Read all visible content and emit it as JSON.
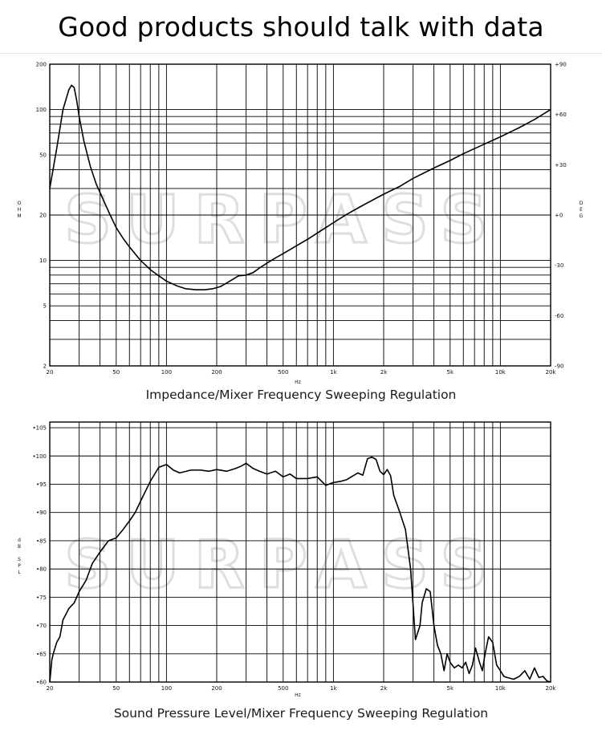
{
  "page": {
    "title": "Good products should talk with data",
    "watermark": "SURPASS"
  },
  "chart_data": [
    {
      "type": "line",
      "caption": "Impedance/Mixer Frequency Sweeping Regulation",
      "xlabel": "Hz",
      "ylabel": "OHM",
      "y2label": "DEG",
      "xscale": "log",
      "yscale": "log",
      "xlim": [
        20,
        20000
      ],
      "ylim": [
        2,
        200
      ],
      "y2lim": [
        -90,
        90
      ],
      "grid": true,
      "x_ticks": [
        {
          "v": 20,
          "l": "20"
        },
        {
          "v": 50,
          "l": "50"
        },
        {
          "v": 100,
          "l": "100"
        },
        {
          "v": 200,
          "l": "200"
        },
        {
          "v": 500,
          "l": "500"
        },
        {
          "v": 1000,
          "l": "1k"
        },
        {
          "v": 2000,
          "l": "2k"
        },
        {
          "v": 5000,
          "l": "5k"
        },
        {
          "v": 10000,
          "l": "10k"
        },
        {
          "v": 20000,
          "l": "20k"
        }
      ],
      "y_ticks": [
        {
          "v": 2,
          "l": "2"
        },
        {
          "v": 5,
          "l": "5"
        },
        {
          "v": 10,
          "l": "10"
        },
        {
          "v": 20,
          "l": "20"
        },
        {
          "v": 50,
          "l": "50"
        },
        {
          "v": 100,
          "l": "100"
        },
        {
          "v": 200,
          "l": "200"
        }
      ],
      "y2_ticks": [
        {
          "v": 90,
          "l": "+90"
        },
        {
          "v": 60,
          "l": "+60"
        },
        {
          "v": 30,
          "l": "+30"
        },
        {
          "v": 0,
          "l": "+0"
        },
        {
          "v": -30,
          "l": "-30"
        },
        {
          "v": -60,
          "l": "-60"
        },
        {
          "v": -90,
          "l": "-90"
        }
      ],
      "series": [
        {
          "x": [
            20,
            22,
            24,
            26,
            27,
            28,
            29,
            30,
            32,
            35,
            38,
            42,
            46,
            50,
            55,
            60,
            70,
            80,
            90,
            100,
            115,
            130,
            150,
            170,
            190,
            210,
            230,
            250,
            270,
            300,
            330,
            360,
            400,
            450,
            500,
            550,
            600,
            700,
            800,
            900,
            1000,
            1200,
            1500,
            2000,
            2500,
            3000,
            4000,
            5000,
            6000,
            8000,
            10000,
            13000,
            16000,
            20000
          ],
          "y": [
            30,
            55,
            100,
            135,
            145,
            140,
            115,
            90,
            62,
            42,
            32,
            25,
            20,
            16.5,
            14,
            12.3,
            10,
            8.7,
            7.9,
            7.3,
            6.8,
            6.5,
            6.4,
            6.4,
            6.5,
            6.7,
            7.1,
            7.5,
            7.9,
            8.0,
            8.3,
            8.9,
            9.6,
            10.4,
            11.1,
            11.8,
            12.5,
            13.8,
            15.2,
            16.5,
            17.8,
            20.2,
            23.2,
            27.5,
            31,
            35,
            41,
            46,
            51,
            59,
            66,
            76,
            86,
            100
          ]
        }
      ]
    },
    {
      "type": "line",
      "caption": "Sound Pressure Level/Mixer Frequency Sweeping Regulation",
      "xlabel": "Hz",
      "ylabel": "dB SPL",
      "xscale": "log",
      "xlim": [
        20,
        20000
      ],
      "ylim": [
        60,
        106
      ],
      "grid": true,
      "x_ticks": [
        {
          "v": 20,
          "l": "20"
        },
        {
          "v": 50,
          "l": "50"
        },
        {
          "v": 100,
          "l": "100"
        },
        {
          "v": 200,
          "l": "200"
        },
        {
          "v": 500,
          "l": "500"
        },
        {
          "v": 1000,
          "l": "1k"
        },
        {
          "v": 2000,
          "l": "2k"
        },
        {
          "v": 5000,
          "l": "5k"
        },
        {
          "v": 10000,
          "l": "10k"
        },
        {
          "v": 20000,
          "l": "20k"
        }
      ],
      "y_ticks": [
        {
          "v": 60,
          "l": "60"
        },
        {
          "v": 65,
          "l": "65"
        },
        {
          "v": 70,
          "l": "70"
        },
        {
          "v": 75,
          "l": "75"
        },
        {
          "v": 80,
          "l": "80"
        },
        {
          "v": 85,
          "l": "85"
        },
        {
          "v": 90,
          "l": "90"
        },
        {
          "v": 95,
          "l": "95"
        },
        {
          "v": 100,
          "l": "100"
        },
        {
          "v": 105,
          "l": "105"
        }
      ],
      "series": [
        {
          "x": [
            20,
            20.6,
            21,
            22,
            23,
            24,
            25,
            26,
            28,
            30,
            33,
            36,
            40,
            45,
            50,
            55,
            60,
            65,
            70,
            80,
            90,
            100,
            110,
            120,
            140,
            160,
            180,
            200,
            230,
            260,
            280,
            300,
            330,
            360,
            400,
            450,
            500,
            550,
            600,
            700,
            800,
            900,
            1000,
            1100,
            1200,
            1400,
            1500,
            1600,
            1700,
            1800,
            1900,
            2000,
            2100,
            2200,
            2300,
            2500,
            2700,
            2900,
            3100,
            3300,
            3400,
            3600,
            3800,
            4000,
            4200,
            4400,
            4600,
            4800,
            5000,
            5300,
            5600,
            5900,
            6200,
            6500,
            6800,
            7100,
            7500,
            7800,
            8100,
            8500,
            9000,
            9500,
            10000,
            10500,
            11000,
            12000,
            13000,
            14000,
            15000,
            16000,
            17000,
            18000,
            19000,
            20000
          ],
          "y": [
            60,
            64,
            65,
            67,
            68,
            71,
            72,
            73,
            74,
            76,
            78,
            81,
            83,
            85,
            85.5,
            87,
            88.5,
            90,
            92,
            95.5,
            98,
            98.5,
            97.5,
            97,
            97.5,
            97.5,
            97.3,
            97.6,
            97.3,
            97.8,
            98.2,
            98.7,
            97.8,
            97.3,
            96.8,
            97.3,
            96.3,
            96.8,
            96,
            96,
            96.3,
            94.8,
            95.3,
            95.5,
            95.8,
            97,
            96.6,
            99.5,
            99.8,
            99.4,
            97.3,
            96.7,
            97.6,
            96.5,
            93,
            90,
            87,
            80,
            67.5,
            70,
            74,
            76.5,
            76,
            70,
            66.5,
            65,
            62,
            65,
            63.5,
            62.5,
            63,
            62.5,
            63.5,
            61.5,
            63,
            66,
            63.5,
            62,
            65,
            68,
            67,
            63,
            62,
            61,
            60.8,
            60.5,
            61,
            62,
            60.5,
            62.5,
            60.8,
            61,
            60.2,
            60
          ]
        }
      ]
    }
  ]
}
